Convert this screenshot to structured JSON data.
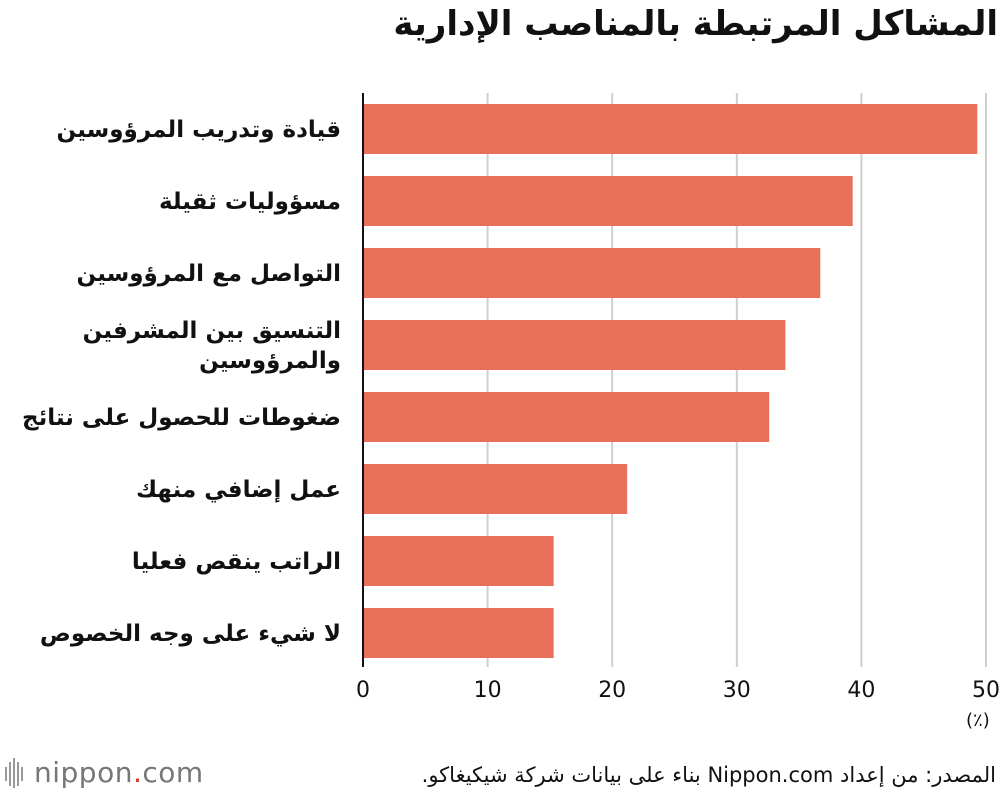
{
  "chart_data": {
    "type": "bar",
    "orientation": "horizontal",
    "title": "المشاكل المرتبطة بالمناصب الإدارية",
    "unit": "(٪)",
    "categories": [
      [
        "قيادة وتدريب المرؤوسين"
      ],
      [
        "مسؤوليات ثقيلة"
      ],
      [
        "التواصل مع المرؤوسين"
      ],
      [
        "التنسيق بين المشرفين",
        "والمرؤوسين"
      ],
      [
        "ضغوطات للحصول على نتائج"
      ],
      [
        "عمل إضافي منهك"
      ],
      [
        "الراتب ينقص فعليا"
      ],
      [
        "لا شيء على وجه الخصوص"
      ]
    ],
    "values": [
      49.3,
      39.3,
      36.7,
      33.9,
      32.6,
      21.2,
      15.3,
      15.3
    ],
    "xlim": [
      0,
      50
    ],
    "xticks": [
      0,
      10,
      20,
      30,
      40,
      50
    ],
    "grid": true,
    "bar_color": "#e8705a"
  },
  "source": "المصدر: من إعداد Nippon.com بناء على بيانات شركة شيكيغاكو.",
  "logo": {
    "name": "nippon",
    "dot": ".",
    "suffix": "com"
  }
}
